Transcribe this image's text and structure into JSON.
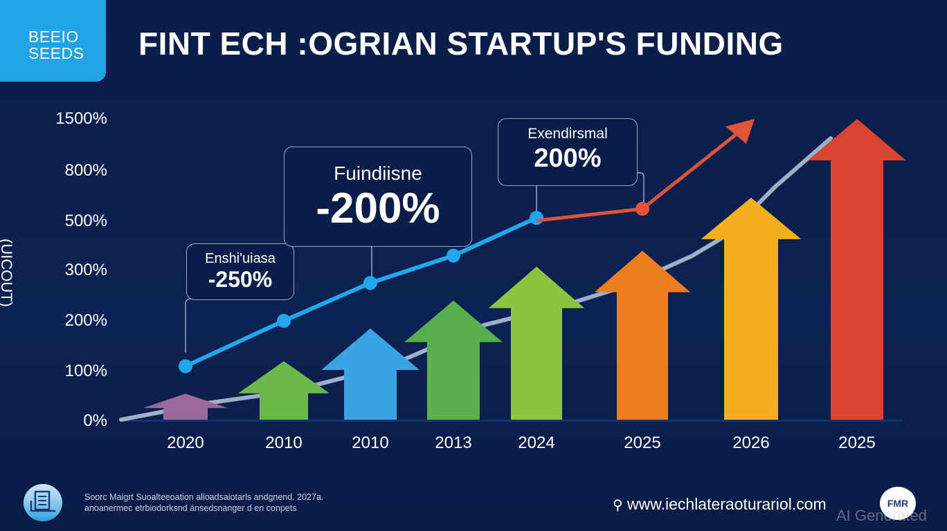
{
  "logo": {
    "line1": "BEEIO",
    "line2": "SEEDS"
  },
  "title": "FINT ECH :OGRIAN STARTUP'S FUNDING",
  "colors": {
    "background": "#0b1f4a",
    "logo_bg": "#22a3e4",
    "line_blue": "#1fa8ec",
    "line_red": "#e0533a",
    "curve": "#b9c9de"
  },
  "chart_data": {
    "type": "bar",
    "title": "FINT ECH :OGRIAN STARTUP'S FUNDING",
    "xlabel": "",
    "ylabel": "(UICOUT)",
    "y_ticks": [
      "0%",
      "100%",
      "200%",
      "300%",
      "500%",
      "800%",
      "1500%"
    ],
    "y_tick_values": [
      0,
      100,
      200,
      300,
      500,
      800,
      1500
    ],
    "ylim": [
      0,
      1500
    ],
    "categories": [
      "2020",
      "2010",
      "2010",
      "2013",
      "2024",
      "2025",
      "2026",
      "2025"
    ],
    "series": [
      {
        "name": "arrows",
        "values": [
          55,
          120,
          185,
          240,
          315,
          380,
          640,
          1500
        ],
        "colors": [
          "#9a6a9a",
          "#6cb84a",
          "#3aa3e2",
          "#5aae4e",
          "#8fc23e",
          "#ee7d22",
          "#f4b01c",
          "#d9432f"
        ]
      },
      {
        "name": "blue-line",
        "values": [
          110,
          200,
          275,
          360,
          520
        ],
        "x_indices": [
          0,
          1,
          2,
          3,
          4
        ],
        "color": "#1fa8ec"
      },
      {
        "name": "red-line",
        "values": [
          520,
          560,
          1000
        ],
        "x_positions": [
          4,
          5.2,
          6
        ],
        "color": "#e0533a"
      }
    ],
    "annotations": [
      {
        "label": "Enshi'uiasa",
        "value": "-250%"
      },
      {
        "label": "Fuindiisne",
        "value": "-200%"
      },
      {
        "label": "Exendirsmal",
        "value": "200%"
      }
    ],
    "grid": false,
    "legend": "none"
  },
  "footer": {
    "source_line1": "Soorc Maigrt Suoalteeoation alloadsaiotarls andgnend. 2027a.",
    "source_line2": "anoanermec etrbiodorksnd ánsedsnanger d en conpets",
    "url": "www.iechlateraoturariol.com",
    "badge": "FMR",
    "watermark": "AI Generated"
  }
}
